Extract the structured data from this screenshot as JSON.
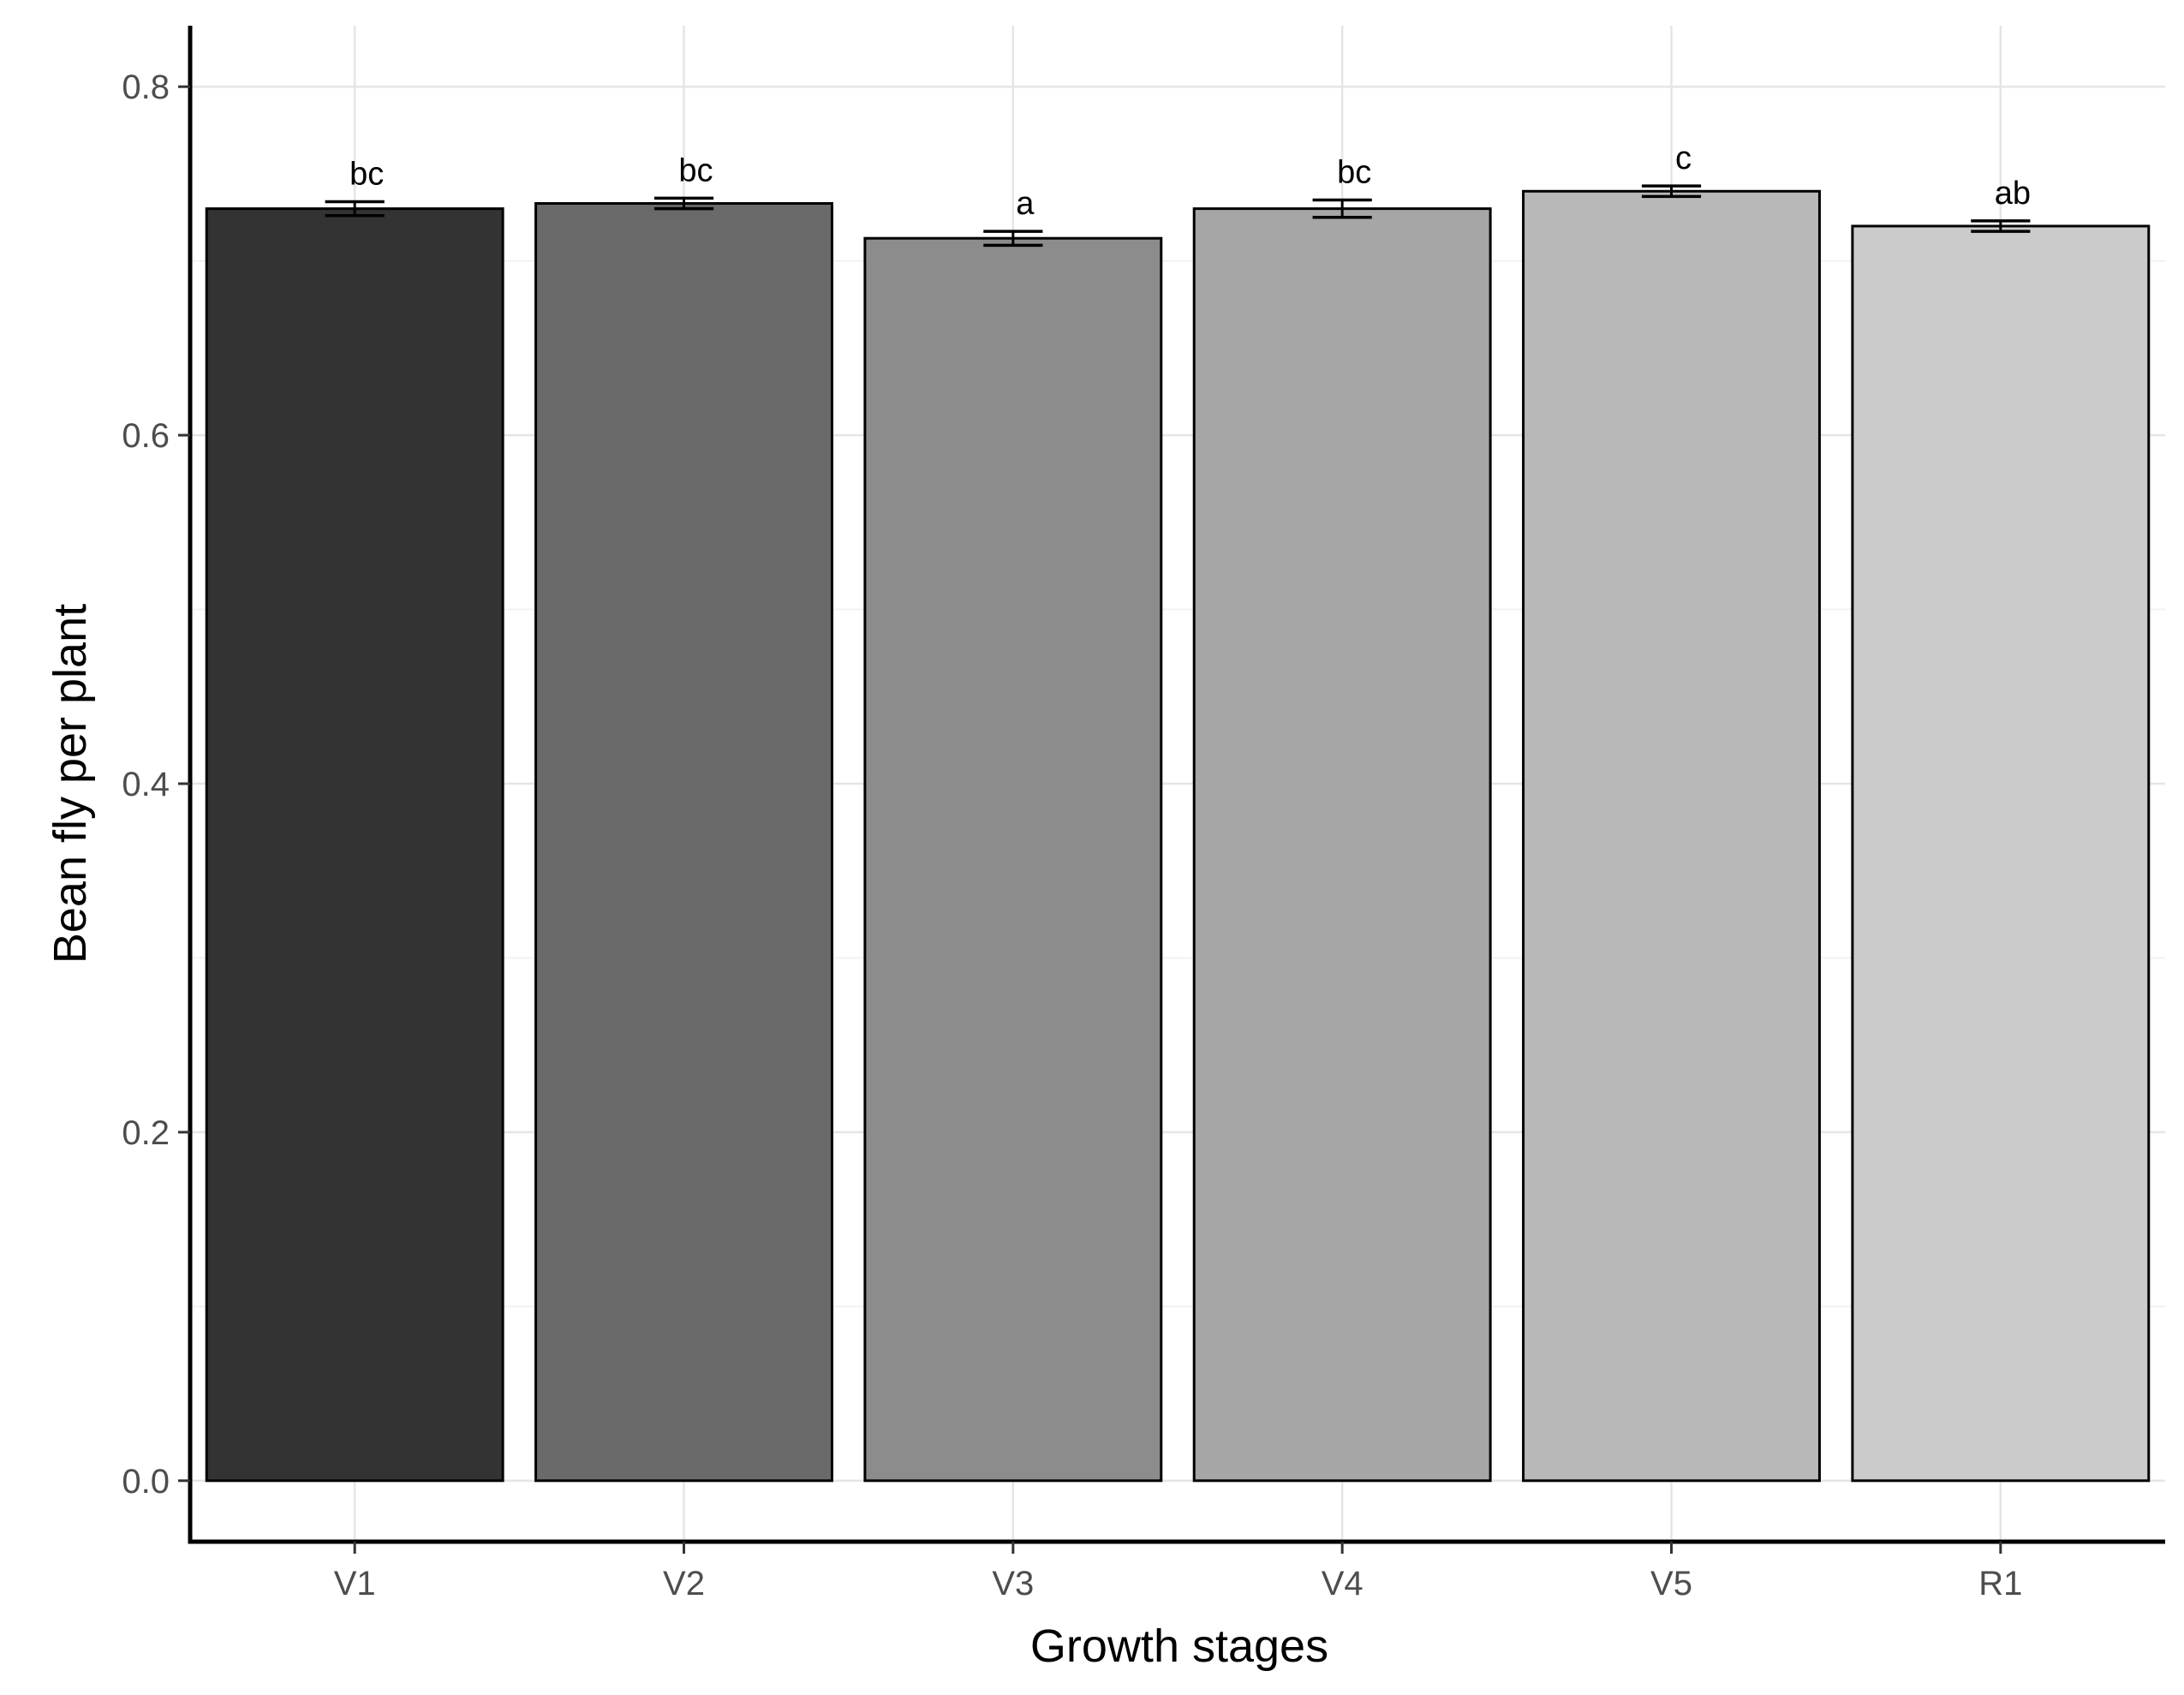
{
  "chart_data": {
    "type": "bar",
    "xlabel": "Growth stages",
    "ylabel": "Bean fly per plant",
    "categories": [
      "V1",
      "V2",
      "V3",
      "V4",
      "V5",
      "R1"
    ],
    "values": [
      0.73,
      0.733,
      0.713,
      0.73,
      0.74,
      0.72
    ],
    "error": [
      0.004,
      0.003,
      0.004,
      0.005,
      0.003,
      0.003
    ],
    "significance_labels": [
      "bc",
      "bc",
      "a",
      "bc",
      "c",
      "ab"
    ],
    "bar_colors": [
      "#333333",
      "#6a6a6a",
      "#8c8c8c",
      "#a6a6a6",
      "#b8b8b8",
      "#cbcbcb"
    ],
    "ylim": [
      -0.035,
      0.835
    ],
    "yticks": [
      0.0,
      0.2,
      0.4,
      0.6,
      0.8
    ],
    "ytick_labels": [
      "0.0",
      "0.2",
      "0.4",
      "0.6",
      "0.8"
    ],
    "grid": true,
    "legend": "none"
  }
}
